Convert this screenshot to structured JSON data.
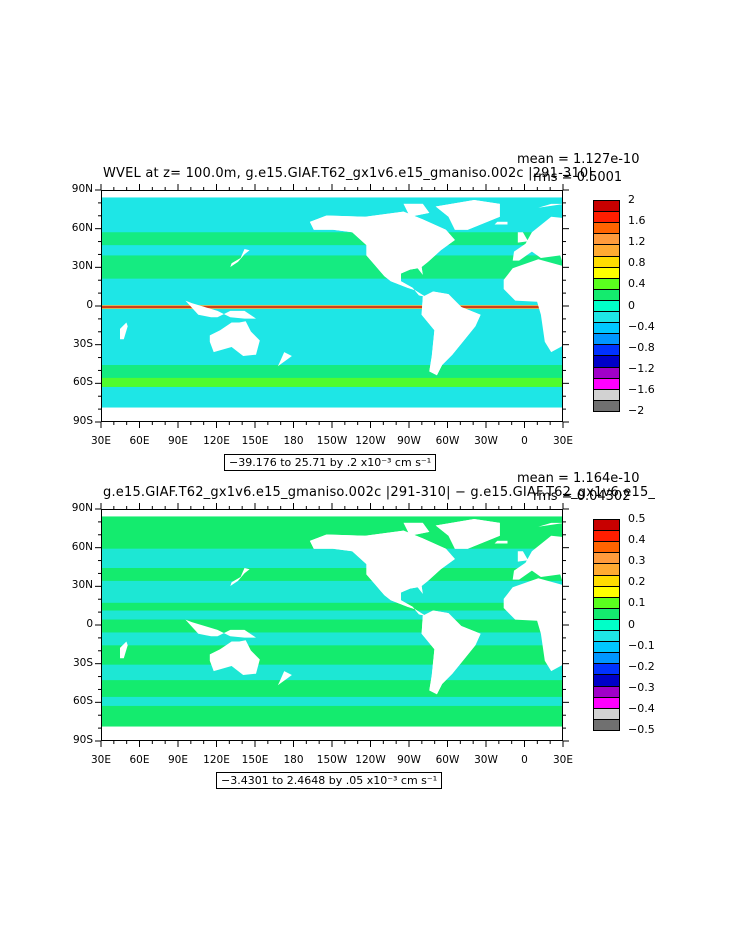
{
  "chart_data": [
    {
      "type": "heatmap",
      "title": "WVEL at z= 100.0m, g.e15.GIAF.T62_gx1v6.e15_gmaniso.002c |291-310|",
      "mean_text": "mean = 1.127e-10",
      "rms_text": "rms = 0.5001",
      "range_text": "−39.176 to 25.71 by .2 x10⁻³ cm s⁻¹",
      "ylabels": [
        "90N",
        "60N",
        "30N",
        "0",
        "30S",
        "60S",
        "90S"
      ],
      "xlabels": [
        "30E",
        "60E",
        "90E",
        "120E",
        "150E",
        "180",
        "150W",
        "120W",
        "90W",
        "60W",
        "30W",
        "0",
        "30E"
      ],
      "colorbar_labels": [
        "2",
        "1.6",
        "1.2",
        "0.8",
        "0.4",
        "0",
        "−0.4",
        "−0.8",
        "−1.2",
        "−1.6",
        "−2"
      ],
      "colorbar_colors": [
        "#c80000",
        "#ff1e00",
        "#ff6400",
        "#ff9b3c",
        "#ffaa32",
        "#ffdc00",
        "#ffff00",
        "#5aff1e",
        "#14eb6e",
        "#00ffc8",
        "#1ee6e6",
        "#00c8ff",
        "#0096ff",
        "#0032ff",
        "#0000c8",
        "#a000c8",
        "#ff00ff",
        "#d2d2d2",
        "#707070"
      ],
      "dominant_ocean_color": "#1ee6e6",
      "ylim": [
        -90,
        90
      ],
      "xlim_deg_east": [
        30,
        390
      ]
    },
    {
      "type": "heatmap",
      "title": "g.e15.GIAF.T62_gx1v6.e15_gmaniso.002c |291-310| − g.e15.GIAF.T62_gx1v6.e15_",
      "mean_text": "mean = 1.164e-10",
      "rms_text": "rms = 0.04302",
      "range_text": "−3.4301 to 2.4648 by .05 x10⁻³ cm s⁻¹",
      "ylabels": [
        "90N",
        "60N",
        "30N",
        "0",
        "30S",
        "60S",
        "90S"
      ],
      "xlabels": [
        "30E",
        "60E",
        "90E",
        "120E",
        "150E",
        "180",
        "150W",
        "120W",
        "90W",
        "60W",
        "30W",
        "0",
        "30E"
      ],
      "colorbar_labels": [
        "0.5",
        "0.4",
        "0.3",
        "0.2",
        "0.1",
        "0",
        "−0.1",
        "−0.2",
        "−0.3",
        "−0.4",
        "−0.5"
      ],
      "colorbar_colors": [
        "#c80000",
        "#ff1e00",
        "#ff6400",
        "#ff9b3c",
        "#ffaa32",
        "#ffdc00",
        "#ffff00",
        "#5aff1e",
        "#14eb6e",
        "#00ffc8",
        "#1ee6e6",
        "#00c8ff",
        "#0096ff",
        "#0032ff",
        "#0000c8",
        "#a000c8",
        "#ff00ff",
        "#d2d2d2",
        "#707070"
      ],
      "dominant_ocean_color": "#14eb6e",
      "ylim": [
        -90,
        90
      ],
      "xlim_deg_east": [
        30,
        390
      ]
    }
  ]
}
